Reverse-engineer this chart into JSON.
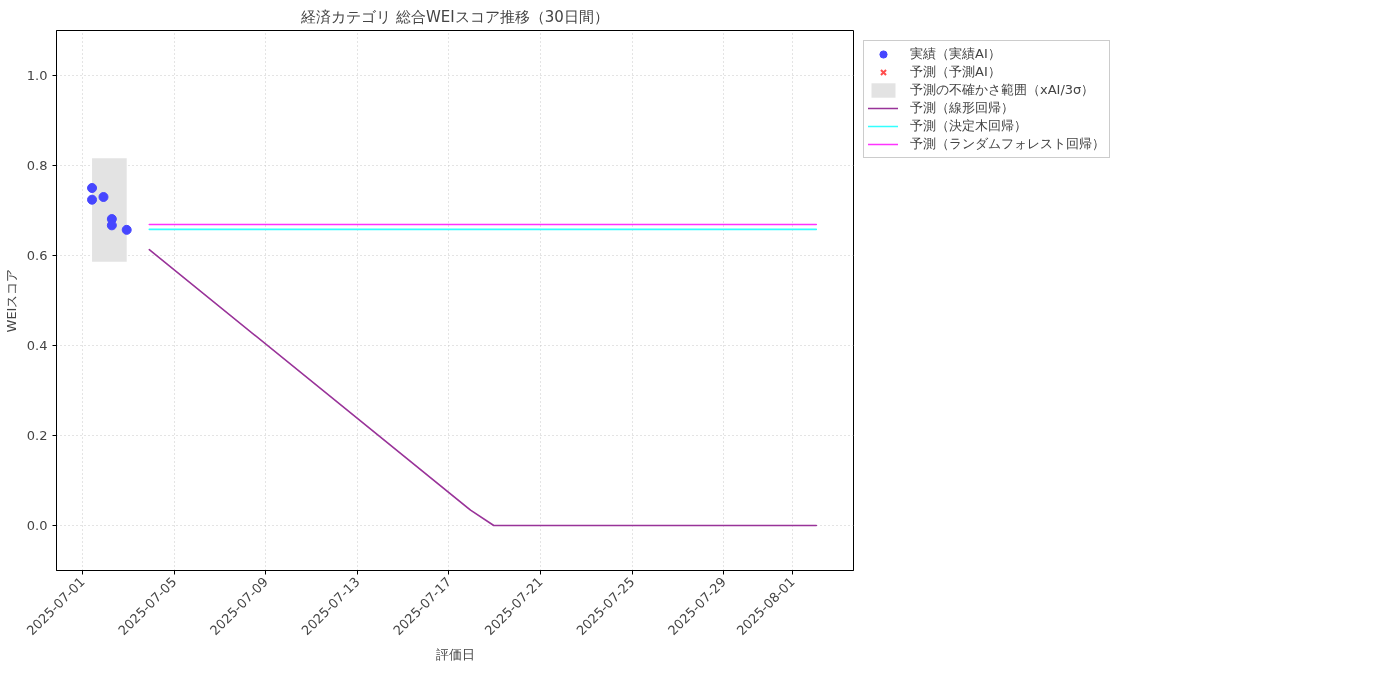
{
  "chart_data": {
    "type": "line",
    "title": "経済カテゴリ 総合WEIスコア推移（30日間）",
    "xlabel": "評価日",
    "ylabel": "WEIスコア",
    "xlim": [
      "2025-06-29T20:45",
      "2025-08-03T16:00"
    ],
    "xticks": [
      "2025-07-01",
      "2025-07-05",
      "2025-07-09",
      "2025-07-13",
      "2025-07-17",
      "2025-07-21",
      "2025-07-25",
      "2025-07-29",
      "2025-08-01"
    ],
    "ylim": [
      -0.1,
      1.1
    ],
    "yticks": [
      {
        "value": 0,
        "label": "0.0"
      },
      0.2,
      0.4,
      0.6,
      0.8,
      {
        "value": 1,
        "label": "1.0"
      }
    ],
    "grid": true,
    "legend": "top right",
    "line_style": "solid",
    "series": [
      {
        "name": "実績（実績AI）",
        "type": "scatter",
        "marker": "circle",
        "color": "#4646ff",
        "x": [
          "2025-07-01T10:00",
          "2025-07-01T10:00",
          "2025-07-01T22:00",
          "2025-07-02T06:45",
          "2025-07-02T06:45",
          "2025-07-02T22:20"
        ],
        "values": [
          0.75,
          0.724,
          0.73,
          0.681,
          0.667,
          0.657
        ]
      },
      {
        "name": "予測（予測AI）",
        "type": "scatter",
        "marker": "cross",
        "color": "#ff4d4d"
      },
      {
        "name": "予測の不確かさ範囲（xAI/3σ）",
        "type": "area",
        "color": "#e3e3e3",
        "x": [
          "2025-07-01T10:00",
          "2025-07-02T22:20"
        ],
        "values": [
          null,
          null
        ],
        "lower": [
          0.586,
          0.586
        ],
        "upper": [
          0.816,
          0.816
        ]
      },
      {
        "name": "予測（線形回帰）",
        "color": "#993399",
        "x": [
          "2025-07-03T22:00",
          "2025-07-17T22:40",
          "2025-07-18T23:00",
          "2025-08-02T01:00"
        ],
        "values": [
          0.613,
          0.034,
          0.0,
          0.0
        ]
      },
      {
        "name": "予測（決定木回帰）",
        "color": "#33ffff",
        "x": [
          "2025-07-03T22:00",
          "2025-08-02T01:00"
        ],
        "values": [
          0.658,
          0.658
        ]
      },
      {
        "name": "予測（ランダムフォレスト回帰）",
        "color": "#ff33ff",
        "x": [
          "2025-07-03T22:00",
          "2025-08-02T01:00"
        ],
        "values": [
          0.669,
          0.669
        ]
      }
    ]
  }
}
